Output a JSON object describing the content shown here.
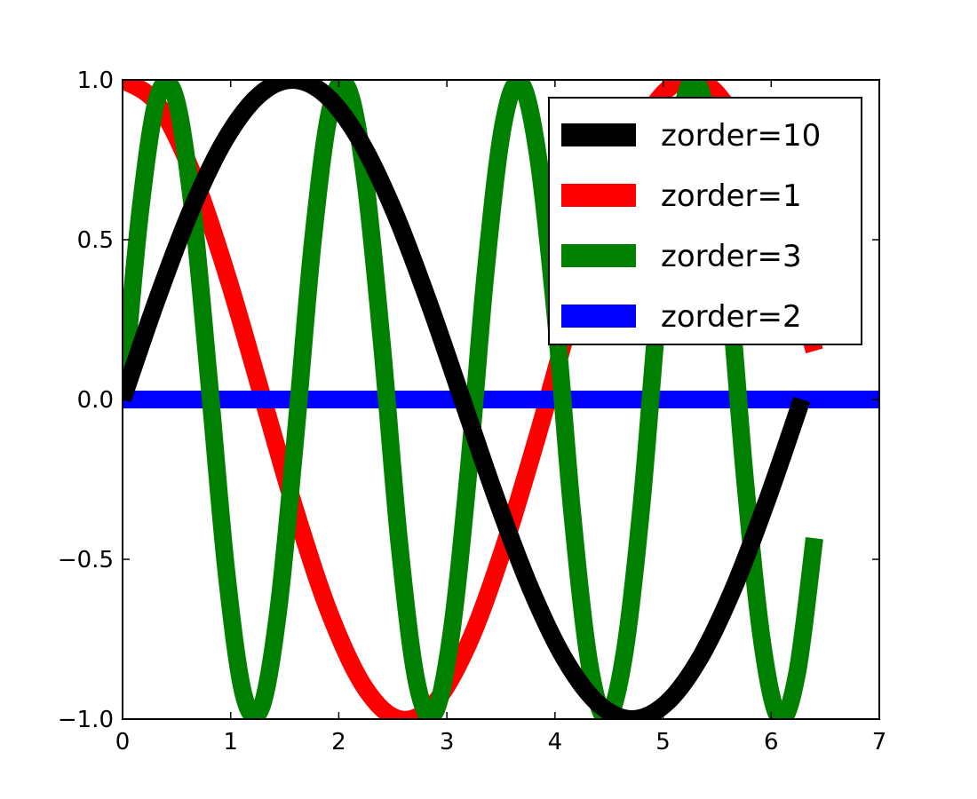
{
  "chart_data": {
    "type": "line",
    "title": "",
    "xlabel": "",
    "ylabel": "",
    "xlim": [
      0,
      7
    ],
    "ylim": [
      -1.0,
      1.0
    ],
    "grid": false,
    "legend_position": "top-right",
    "x_ticks": [
      0,
      1,
      2,
      3,
      4,
      5,
      6,
      7
    ],
    "x_tick_labels": [
      "0",
      "1",
      "2",
      "3",
      "4",
      "5",
      "6",
      "7"
    ],
    "y_ticks": [
      -1.0,
      -0.5,
      0.0,
      0.5,
      1.0
    ],
    "y_tick_labels": [
      "−1.0",
      "−0.5",
      "0.0",
      "0.5",
      "1.0"
    ],
    "x": [
      0.0,
      0.314,
      0.628,
      0.942,
      1.257,
      1.571,
      1.885,
      2.199,
      2.513,
      2.827,
      3.142,
      3.456,
      3.77,
      4.084,
      4.398,
      4.712,
      5.027,
      5.341,
      5.655,
      5.969,
      6.283
    ],
    "series": [
      {
        "name": "zorder=10",
        "color": "#000000",
        "order": 10,
        "x": [
          0.0,
          0.314,
          0.628,
          0.942,
          1.257,
          1.571,
          1.885,
          2.199,
          2.513,
          2.827,
          3.142,
          3.456,
          3.77,
          4.084,
          4.398,
          4.712,
          5.027,
          5.341,
          5.655,
          5.969,
          6.283
        ],
        "values": [
          0.0,
          0.309,
          0.588,
          0.809,
          0.951,
          1.0,
          0.951,
          0.809,
          0.588,
          0.309,
          0.0,
          -0.309,
          -0.588,
          -0.809,
          -0.951,
          -1.0,
          -0.951,
          -0.809,
          -0.588,
          -0.309,
          0.0
        ]
      },
      {
        "name": "zorder=1",
        "color": "#ff0000",
        "order": 1,
        "x": [
          0.0,
          0.32,
          0.64,
          0.96,
          1.28,
          1.6,
          1.92,
          2.24,
          2.56,
          2.88,
          3.2,
          3.52,
          3.84,
          4.16,
          4.48,
          4.8,
          5.12,
          5.44,
          5.76,
          6.08,
          6.4
        ],
        "values": [
          1.0,
          0.926,
          0.713,
          0.396,
          0.024,
          -0.349,
          -0.673,
          -0.901,
          -1.0,
          -0.952,
          -0.764,
          -0.469,
          -0.112,
          0.273,
          0.611,
          0.861,
          0.99,
          0.977,
          0.813,
          0.526,
          0.152
        ]
      },
      {
        "name": "zorder=3",
        "color": "#008000",
        "order": 3,
        "x": [
          0.0,
          0.16,
          0.32,
          0.48,
          0.64,
          0.8,
          0.96,
          1.12,
          1.28,
          1.44,
          1.6,
          1.76,
          1.92,
          2.08,
          2.24,
          2.4,
          2.56,
          2.72,
          2.88,
          3.04,
          3.2,
          3.36,
          3.52,
          3.68,
          3.84,
          4.0,
          4.16,
          4.32,
          4.48,
          4.64,
          4.8,
          4.96,
          5.12,
          5.28,
          5.44,
          5.6,
          5.76,
          5.92,
          6.08,
          6.24,
          6.4
        ],
        "values": [
          0.0,
          0.579,
          0.941,
          0.955,
          0.621,
          0.057,
          -0.538,
          -0.924,
          -0.966,
          -0.661,
          -0.114,
          0.495,
          0.905,
          0.976,
          0.699,
          0.17,
          -0.45,
          -0.882,
          -0.984,
          -0.735,
          -0.225,
          0.404,
          0.857,
          0.991,
          0.768,
          0.279,
          -0.357,
          -0.83,
          -0.995,
          -0.8,
          -0.332,
          0.309,
          0.8,
          0.999,
          0.829,
          0.384,
          -0.259,
          -0.768,
          -0.999,
          -0.856,
          -0.434
        ]
      },
      {
        "name": "zorder=2",
        "color": "#0000ff",
        "order": 2,
        "x": [
          0.0,
          7.0
        ],
        "values": [
          0.0,
          0.0
        ]
      }
    ]
  }
}
